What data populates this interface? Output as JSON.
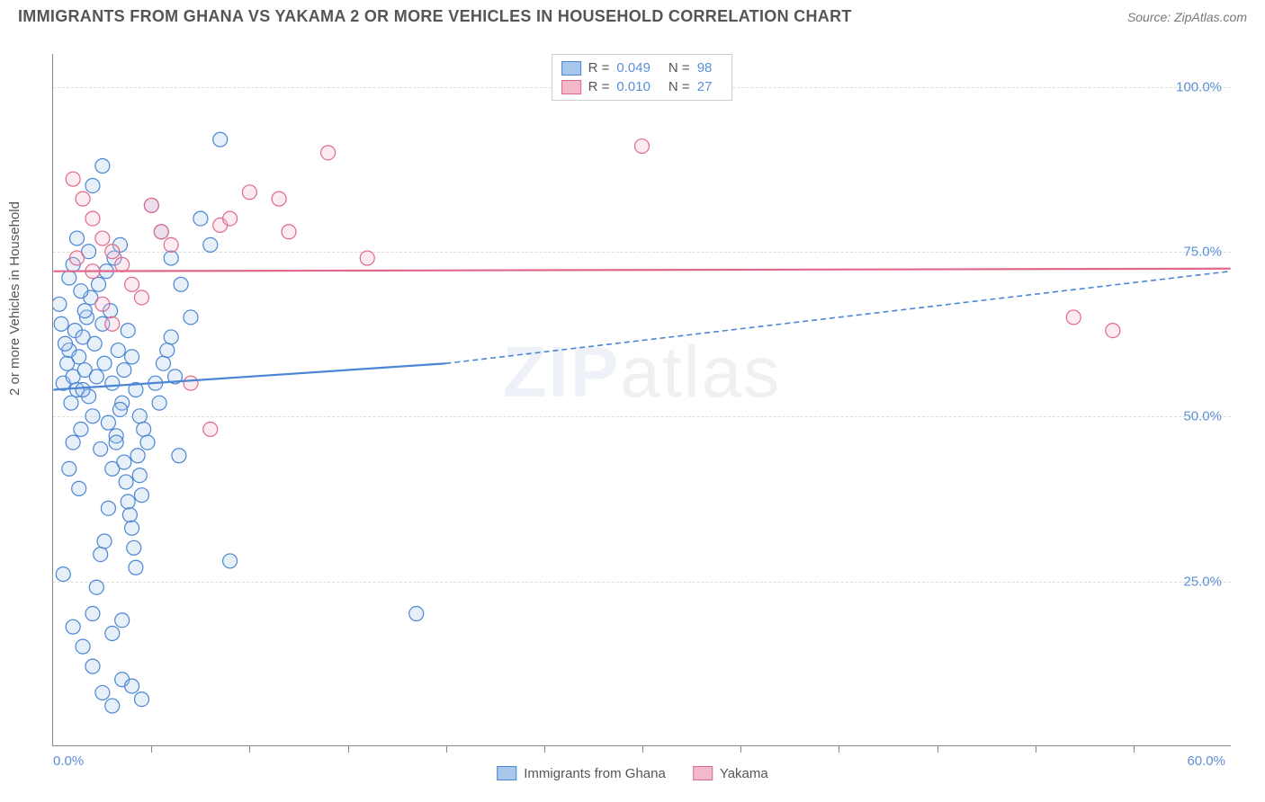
{
  "title": "IMMIGRANTS FROM GHANA VS YAKAMA 2 OR MORE VEHICLES IN HOUSEHOLD CORRELATION CHART",
  "source": "Source: ZipAtlas.com",
  "y_axis_label": "2 or more Vehicles in Household",
  "watermark_bold": "ZIP",
  "watermark_thin": "atlas",
  "chart": {
    "type": "scatter",
    "xlim": [
      0,
      60
    ],
    "ylim": [
      0,
      105
    ],
    "x_ticks": [
      0,
      60
    ],
    "x_tick_labels": [
      "0.0%",
      "60.0%"
    ],
    "x_minor_ticks": [
      5,
      10,
      15,
      20,
      25,
      30,
      35,
      40,
      45,
      50,
      55
    ],
    "y_gridlines": [
      25,
      50,
      75,
      100
    ],
    "y_tick_labels": [
      "25.0%",
      "50.0%",
      "75.0%",
      "100.0%"
    ],
    "background_color": "#ffffff",
    "grid_color": "#dddddd",
    "axis_color": "#888888",
    "tick_label_color": "#5b8fd6",
    "marker_radius": 8,
    "marker_stroke_width": 1.2,
    "marker_fill_opacity": 0.28,
    "series": [
      {
        "name": "Immigrants from Ghana",
        "color_stroke": "#4a86d4",
        "color_fill": "#a9c7ea",
        "R": "0.049",
        "N": "98",
        "trend": {
          "x1": 0,
          "y1": 54,
          "x2": 20,
          "y2": 58,
          "ext_x2": 60,
          "ext_y2": 72,
          "dash": "6,4"
        },
        "points": [
          [
            0.5,
            55
          ],
          [
            0.7,
            58
          ],
          [
            0.8,
            60
          ],
          [
            0.9,
            52
          ],
          [
            1.0,
            56
          ],
          [
            1.1,
            63
          ],
          [
            1.2,
            54
          ],
          [
            1.3,
            59
          ],
          [
            1.4,
            48
          ],
          [
            1.5,
            62
          ],
          [
            1.6,
            57
          ],
          [
            1.7,
            65
          ],
          [
            1.8,
            53
          ],
          [
            1.9,
            68
          ],
          [
            2.0,
            50
          ],
          [
            2.1,
            61
          ],
          [
            2.2,
            56
          ],
          [
            2.3,
            70
          ],
          [
            2.4,
            45
          ],
          [
            2.5,
            64
          ],
          [
            2.6,
            58
          ],
          [
            2.7,
            72
          ],
          [
            2.8,
            49
          ],
          [
            2.9,
            66
          ],
          [
            3.0,
            55
          ],
          [
            3.1,
            74
          ],
          [
            3.2,
            47
          ],
          [
            3.3,
            60
          ],
          [
            3.4,
            76
          ],
          [
            3.5,
            52
          ],
          [
            3.6,
            43
          ],
          [
            3.7,
            40
          ],
          [
            3.8,
            37
          ],
          [
            3.9,
            35
          ],
          [
            4.0,
            33
          ],
          [
            4.1,
            30
          ],
          [
            4.2,
            27
          ],
          [
            4.3,
            44
          ],
          [
            4.4,
            41
          ],
          [
            4.5,
            38
          ],
          [
            0.5,
            26
          ],
          [
            1.0,
            18
          ],
          [
            1.5,
            15
          ],
          [
            2.0,
            12
          ],
          [
            2.5,
            8
          ],
          [
            3.0,
            6
          ],
          [
            3.5,
            10
          ],
          [
            4.0,
            9
          ],
          [
            4.5,
            7
          ],
          [
            5.0,
            82
          ],
          [
            5.5,
            78
          ],
          [
            6.0,
            74
          ],
          [
            6.5,
            70
          ],
          [
            7.0,
            65
          ],
          [
            7.5,
            80
          ],
          [
            8.0,
            76
          ],
          [
            8.5,
            92
          ],
          [
            9.0,
            28
          ],
          [
            2.0,
            85
          ],
          [
            2.5,
            88
          ],
          [
            0.3,
            67
          ],
          [
            0.4,
            64
          ],
          [
            0.6,
            61
          ],
          [
            0.8,
            71
          ],
          [
            1.0,
            73
          ],
          [
            1.2,
            77
          ],
          [
            1.4,
            69
          ],
          [
            1.6,
            66
          ],
          [
            1.8,
            75
          ],
          [
            2.0,
            20
          ],
          [
            2.2,
            24
          ],
          [
            2.4,
            29
          ],
          [
            2.6,
            31
          ],
          [
            2.8,
            36
          ],
          [
            3.0,
            42
          ],
          [
            3.2,
            46
          ],
          [
            3.4,
            51
          ],
          [
            3.6,
            57
          ],
          [
            3.8,
            63
          ],
          [
            4.0,
            59
          ],
          [
            4.2,
            54
          ],
          [
            4.4,
            50
          ],
          [
            4.6,
            48
          ],
          [
            4.8,
            46
          ],
          [
            5.2,
            55
          ],
          [
            5.4,
            52
          ],
          [
            5.6,
            58
          ],
          [
            5.8,
            60
          ],
          [
            6.0,
            62
          ],
          [
            6.2,
            56
          ],
          [
            6.4,
            44
          ],
          [
            1.0,
            46
          ],
          [
            1.5,
            54
          ],
          [
            0.8,
            42
          ],
          [
            1.3,
            39
          ],
          [
            18.5,
            20
          ],
          [
            3.0,
            17
          ],
          [
            3.5,
            19
          ]
        ]
      },
      {
        "name": "Yakama",
        "color_stroke": "#e06989",
        "color_fill": "#f3b8c9",
        "R": "0.010",
        "N": "27",
        "trend": {
          "x1": 0,
          "y1": 72,
          "x2": 60,
          "y2": 72.4
        },
        "points": [
          [
            1.0,
            86
          ],
          [
            1.5,
            83
          ],
          [
            2.0,
            80
          ],
          [
            2.5,
            77
          ],
          [
            3.0,
            75
          ],
          [
            3.5,
            73
          ],
          [
            4.0,
            70
          ],
          [
            4.5,
            68
          ],
          [
            5.0,
            82
          ],
          [
            5.5,
            78
          ],
          [
            6.0,
            76
          ],
          [
            7.0,
            55
          ],
          [
            8.0,
            48
          ],
          [
            8.5,
            79
          ],
          [
            9.0,
            80
          ],
          [
            10.0,
            84
          ],
          [
            11.5,
            83
          ],
          [
            12.0,
            78
          ],
          [
            14.0,
            90
          ],
          [
            16.0,
            74
          ],
          [
            30.0,
            91
          ],
          [
            52.0,
            65
          ],
          [
            54.0,
            63
          ],
          [
            2.0,
            72
          ],
          [
            2.5,
            67
          ],
          [
            3.0,
            64
          ],
          [
            1.2,
            74
          ]
        ]
      }
    ]
  },
  "legend_bottom": {
    "items": [
      {
        "label": "Immigrants from Ghana",
        "stroke": "#4a86d4",
        "fill": "#a9c7ea"
      },
      {
        "label": "Yakama",
        "stroke": "#e06989",
        "fill": "#f3b8c9"
      }
    ]
  }
}
